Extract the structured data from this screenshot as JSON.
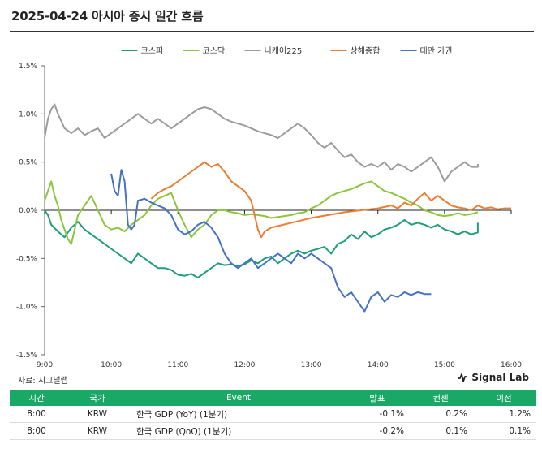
{
  "header": {
    "title": "2025-04-24 아시아 증시 일간 흐름"
  },
  "footer": {
    "source": "자료: 시그널랩",
    "brand": "Signal Lab",
    "brand_icon": "signal-wave-icon"
  },
  "chart_data": {
    "type": "line",
    "title": "",
    "xlabel": "",
    "ylabel": "",
    "x_ticks": [
      "9:00",
      "10:00",
      "11:00",
      "12:00",
      "13:00",
      "14:00",
      "15:00",
      "16:00"
    ],
    "y_ticks": [
      "1.5%",
      "1.0%",
      "0.5%",
      "0.0%",
      "-0.5%",
      "-1.0%",
      "-1.5%"
    ],
    "xlim": [
      9.0,
      16.0
    ],
    "ylim": [
      -1.5,
      1.5
    ],
    "legend_position": "top",
    "grid": false,
    "series": [
      {
        "name": "코스피",
        "color": "#1e9e7a",
        "points": [
          [
            9.0,
            0.0
          ],
          [
            9.05,
            -0.05
          ],
          [
            9.1,
            -0.15
          ],
          [
            9.2,
            -0.22
          ],
          [
            9.3,
            -0.28
          ],
          [
            9.4,
            -0.18
          ],
          [
            9.5,
            -0.12
          ],
          [
            9.6,
            -0.2
          ],
          [
            9.7,
            -0.25
          ],
          [
            9.8,
            -0.3
          ],
          [
            9.9,
            -0.35
          ],
          [
            10.0,
            -0.4
          ],
          [
            10.1,
            -0.45
          ],
          [
            10.2,
            -0.5
          ],
          [
            10.3,
            -0.55
          ],
          [
            10.4,
            -0.45
          ],
          [
            10.5,
            -0.5
          ],
          [
            10.6,
            -0.55
          ],
          [
            10.7,
            -0.6
          ],
          [
            10.8,
            -0.6
          ],
          [
            10.9,
            -0.62
          ],
          [
            11.0,
            -0.67
          ],
          [
            11.1,
            -0.68
          ],
          [
            11.2,
            -0.66
          ],
          [
            11.3,
            -0.7
          ],
          [
            11.4,
            -0.65
          ],
          [
            11.5,
            -0.6
          ],
          [
            11.6,
            -0.55
          ],
          [
            11.7,
            -0.57
          ],
          [
            11.8,
            -0.56
          ],
          [
            11.9,
            -0.58
          ],
          [
            12.0,
            -0.56
          ],
          [
            12.1,
            -0.52
          ],
          [
            12.2,
            -0.55
          ],
          [
            12.3,
            -0.5
          ],
          [
            12.4,
            -0.48
          ],
          [
            12.5,
            -0.55
          ],
          [
            12.6,
            -0.5
          ],
          [
            12.7,
            -0.45
          ],
          [
            12.8,
            -0.42
          ],
          [
            12.9,
            -0.45
          ],
          [
            13.0,
            -0.42
          ],
          [
            13.1,
            -0.4
          ],
          [
            13.2,
            -0.38
          ],
          [
            13.3,
            -0.45
          ],
          [
            13.4,
            -0.35
          ],
          [
            13.5,
            -0.32
          ],
          [
            13.6,
            -0.25
          ],
          [
            13.7,
            -0.3
          ],
          [
            13.8,
            -0.22
          ],
          [
            13.9,
            -0.28
          ],
          [
            14.0,
            -0.25
          ],
          [
            14.1,
            -0.2
          ],
          [
            14.2,
            -0.18
          ],
          [
            14.3,
            -0.15
          ],
          [
            14.4,
            -0.1
          ],
          [
            14.5,
            -0.15
          ],
          [
            14.6,
            -0.13
          ],
          [
            14.7,
            -0.15
          ],
          [
            14.8,
            -0.18
          ],
          [
            14.9,
            -0.15
          ],
          [
            15.0,
            -0.2
          ],
          [
            15.1,
            -0.22
          ],
          [
            15.2,
            -0.25
          ],
          [
            15.3,
            -0.22
          ],
          [
            15.4,
            -0.25
          ],
          [
            15.5,
            -0.23
          ],
          [
            15.5,
            -0.13
          ]
        ]
      },
      {
        "name": "코스닥",
        "color": "#8cc63f",
        "points": [
          [
            9.0,
            0.1
          ],
          [
            9.05,
            0.2
          ],
          [
            9.1,
            0.3
          ],
          [
            9.15,
            0.15
          ],
          [
            9.2,
            0.05
          ],
          [
            9.25,
            -0.1
          ],
          [
            9.3,
            -0.2
          ],
          [
            9.35,
            -0.3
          ],
          [
            9.4,
            -0.35
          ],
          [
            9.45,
            -0.2
          ],
          [
            9.5,
            -0.05
          ],
          [
            9.6,
            0.05
          ],
          [
            9.7,
            0.15
          ],
          [
            9.8,
            0.0
          ],
          [
            9.9,
            -0.15
          ],
          [
            10.0,
            -0.2
          ],
          [
            10.1,
            -0.18
          ],
          [
            10.2,
            -0.22
          ],
          [
            10.3,
            -0.15
          ],
          [
            10.4,
            -0.1
          ],
          [
            10.5,
            -0.05
          ],
          [
            10.6,
            0.05
          ],
          [
            10.7,
            0.12
          ],
          [
            10.8,
            0.15
          ],
          [
            10.9,
            0.18
          ],
          [
            11.0,
            0.0
          ],
          [
            11.1,
            -0.15
          ],
          [
            11.2,
            -0.28
          ],
          [
            11.3,
            -0.2
          ],
          [
            11.4,
            -0.15
          ],
          [
            11.5,
            -0.05
          ],
          [
            11.6,
            0.0
          ],
          [
            11.7,
            0.0
          ],
          [
            11.8,
            -0.02
          ],
          [
            11.9,
            -0.03
          ],
          [
            12.0,
            -0.05
          ],
          [
            12.1,
            -0.04
          ],
          [
            12.2,
            -0.05
          ],
          [
            12.3,
            -0.06
          ],
          [
            12.4,
            -0.08
          ],
          [
            12.5,
            -0.07
          ],
          [
            12.6,
            -0.06
          ],
          [
            12.7,
            -0.05
          ],
          [
            12.8,
            -0.03
          ],
          [
            12.9,
            -0.02
          ],
          [
            13.0,
            0.02
          ],
          [
            13.1,
            0.05
          ],
          [
            13.2,
            0.1
          ],
          [
            13.3,
            0.15
          ],
          [
            13.4,
            0.18
          ],
          [
            13.5,
            0.2
          ],
          [
            13.6,
            0.22
          ],
          [
            13.7,
            0.25
          ],
          [
            13.8,
            0.28
          ],
          [
            13.9,
            0.3
          ],
          [
            14.0,
            0.25
          ],
          [
            14.1,
            0.2
          ],
          [
            14.2,
            0.18
          ],
          [
            14.3,
            0.15
          ],
          [
            14.4,
            0.12
          ],
          [
            14.5,
            0.08
          ],
          [
            14.6,
            0.05
          ],
          [
            14.7,
            0.0
          ],
          [
            14.8,
            -0.02
          ],
          [
            14.9,
            -0.05
          ],
          [
            15.0,
            -0.06
          ],
          [
            15.1,
            -0.05
          ],
          [
            15.2,
            -0.03
          ],
          [
            15.3,
            -0.05
          ],
          [
            15.4,
            -0.04
          ],
          [
            15.5,
            -0.02
          ]
        ]
      },
      {
        "name": "니케이225",
        "color": "#9c9c9c",
        "points": [
          [
            9.0,
            0.75
          ],
          [
            9.05,
            0.95
          ],
          [
            9.1,
            1.05
          ],
          [
            9.15,
            1.1
          ],
          [
            9.2,
            1.0
          ],
          [
            9.3,
            0.85
          ],
          [
            9.4,
            0.8
          ],
          [
            9.5,
            0.85
          ],
          [
            9.6,
            0.78
          ],
          [
            9.7,
            0.82
          ],
          [
            9.8,
            0.85
          ],
          [
            9.9,
            0.75
          ],
          [
            10.0,
            0.8
          ],
          [
            10.1,
            0.85
          ],
          [
            10.2,
            0.9
          ],
          [
            10.3,
            0.95
          ],
          [
            10.4,
            1.0
          ],
          [
            10.5,
            0.95
          ],
          [
            10.6,
            0.9
          ],
          [
            10.7,
            0.95
          ],
          [
            10.8,
            0.9
          ],
          [
            10.9,
            0.85
          ],
          [
            11.0,
            0.9
          ],
          [
            11.1,
            0.95
          ],
          [
            11.2,
            1.0
          ],
          [
            11.3,
            1.05
          ],
          [
            11.4,
            1.07
          ],
          [
            11.5,
            1.05
          ],
          [
            11.6,
            1.0
          ],
          [
            11.7,
            0.95
          ],
          [
            11.8,
            0.92
          ],
          [
            11.9,
            0.9
          ],
          [
            12.0,
            0.88
          ],
          [
            12.1,
            0.85
          ],
          [
            12.2,
            0.82
          ],
          [
            12.3,
            0.8
          ],
          [
            12.4,
            0.78
          ],
          [
            12.5,
            0.75
          ],
          [
            12.6,
            0.8
          ],
          [
            12.7,
            0.85
          ],
          [
            12.8,
            0.9
          ],
          [
            12.9,
            0.85
          ],
          [
            13.0,
            0.78
          ],
          [
            13.1,
            0.7
          ],
          [
            13.2,
            0.65
          ],
          [
            13.3,
            0.7
          ],
          [
            13.4,
            0.62
          ],
          [
            13.5,
            0.55
          ],
          [
            13.6,
            0.58
          ],
          [
            13.7,
            0.5
          ],
          [
            13.8,
            0.45
          ],
          [
            13.9,
            0.48
          ],
          [
            14.0,
            0.45
          ],
          [
            14.1,
            0.5
          ],
          [
            14.2,
            0.42
          ],
          [
            14.3,
            0.48
          ],
          [
            14.4,
            0.45
          ],
          [
            14.5,
            0.4
          ],
          [
            14.6,
            0.45
          ],
          [
            14.7,
            0.5
          ],
          [
            14.8,
            0.55
          ],
          [
            14.9,
            0.45
          ],
          [
            15.0,
            0.3
          ],
          [
            15.1,
            0.4
          ],
          [
            15.2,
            0.45
          ],
          [
            15.3,
            0.5
          ],
          [
            15.4,
            0.45
          ],
          [
            15.5,
            0.45
          ],
          [
            15.5,
            0.48
          ]
        ]
      },
      {
        "name": "상해종합",
        "color": "#ed7d31",
        "points": [
          [
            10.6,
            0.12
          ],
          [
            10.7,
            0.18
          ],
          [
            10.8,
            0.22
          ],
          [
            10.9,
            0.25
          ],
          [
            11.0,
            0.3
          ],
          [
            11.1,
            0.35
          ],
          [
            11.2,
            0.4
          ],
          [
            11.3,
            0.45
          ],
          [
            11.4,
            0.5
          ],
          [
            11.5,
            0.45
          ],
          [
            11.6,
            0.48
          ],
          [
            11.7,
            0.4
          ],
          [
            11.8,
            0.3
          ],
          [
            11.9,
            0.25
          ],
          [
            12.0,
            0.2
          ],
          [
            12.1,
            0.1
          ],
          [
            12.15,
            -0.05
          ],
          [
            12.2,
            -0.2
          ],
          [
            12.25,
            -0.28
          ],
          [
            12.3,
            -0.22
          ],
          [
            12.4,
            -0.18
          ],
          [
            13.0,
            -0.08
          ],
          [
            13.5,
            -0.02
          ],
          [
            14.0,
            0.02
          ],
          [
            14.2,
            0.05
          ],
          [
            14.3,
            0.02
          ],
          [
            14.4,
            0.08
          ],
          [
            14.5,
            0.05
          ],
          [
            14.6,
            0.12
          ],
          [
            14.7,
            0.18
          ],
          [
            14.8,
            0.1
          ],
          [
            14.9,
            0.15
          ],
          [
            15.0,
            0.1
          ],
          [
            15.1,
            0.05
          ],
          [
            15.2,
            0.03
          ],
          [
            15.3,
            0.02
          ],
          [
            15.4,
            0.0
          ],
          [
            15.5,
            0.05
          ],
          [
            15.6,
            0.02
          ],
          [
            15.7,
            0.03
          ],
          [
            15.8,
            0.01
          ],
          [
            15.9,
            0.02
          ],
          [
            16.0,
            0.02
          ]
        ]
      },
      {
        "name": "대만 가권",
        "color": "#4472c4",
        "points": [
          [
            10.0,
            0.38
          ],
          [
            10.05,
            0.2
          ],
          [
            10.1,
            0.15
          ],
          [
            10.15,
            0.42
          ],
          [
            10.2,
            0.3
          ],
          [
            10.25,
            -0.15
          ],
          [
            10.3,
            -0.2
          ],
          [
            10.35,
            -0.15
          ],
          [
            10.4,
            0.1
          ],
          [
            10.5,
            0.12
          ],
          [
            10.6,
            0.08
          ],
          [
            10.7,
            0.05
          ],
          [
            10.8,
            0.02
          ],
          [
            10.9,
            -0.05
          ],
          [
            11.0,
            -0.2
          ],
          [
            11.1,
            -0.25
          ],
          [
            11.2,
            -0.22
          ],
          [
            11.3,
            -0.15
          ],
          [
            11.4,
            -0.12
          ],
          [
            11.5,
            -0.18
          ],
          [
            11.6,
            -0.28
          ],
          [
            11.7,
            -0.45
          ],
          [
            11.8,
            -0.55
          ],
          [
            11.9,
            -0.6
          ],
          [
            12.0,
            -0.55
          ],
          [
            12.1,
            -0.5
          ],
          [
            12.2,
            -0.6
          ],
          [
            12.3,
            -0.55
          ],
          [
            12.4,
            -0.5
          ],
          [
            12.5,
            -0.45
          ],
          [
            12.6,
            -0.5
          ],
          [
            12.7,
            -0.55
          ],
          [
            12.8,
            -0.45
          ],
          [
            12.9,
            -0.5
          ],
          [
            13.0,
            -0.45
          ],
          [
            13.1,
            -0.5
          ],
          [
            13.2,
            -0.55
          ],
          [
            13.3,
            -0.6
          ],
          [
            13.4,
            -0.8
          ],
          [
            13.5,
            -0.9
          ],
          [
            13.6,
            -0.85
          ],
          [
            13.7,
            -0.95
          ],
          [
            13.8,
            -1.05
          ],
          [
            13.9,
            -0.9
          ],
          [
            14.0,
            -0.85
          ],
          [
            14.1,
            -0.95
          ],
          [
            14.2,
            -0.88
          ],
          [
            14.3,
            -0.9
          ],
          [
            14.4,
            -0.85
          ],
          [
            14.5,
            -0.88
          ],
          [
            14.6,
            -0.85
          ],
          [
            14.7,
            -0.87
          ],
          [
            14.8,
            -0.87
          ]
        ]
      }
    ]
  },
  "table": {
    "headers": [
      "시간",
      "국가",
      "Event",
      "발표",
      "컨센",
      "이전"
    ],
    "rows": [
      [
        "8:00",
        "KRW",
        "한국 GDP (YoY) (1분기)",
        "-0.1%",
        "0.2%",
        "1.2%"
      ],
      [
        "8:00",
        "KRW",
        "한국 GDP (QoQ) (1분기)",
        "-0.2%",
        "0.1%",
        "0.1%"
      ]
    ]
  }
}
